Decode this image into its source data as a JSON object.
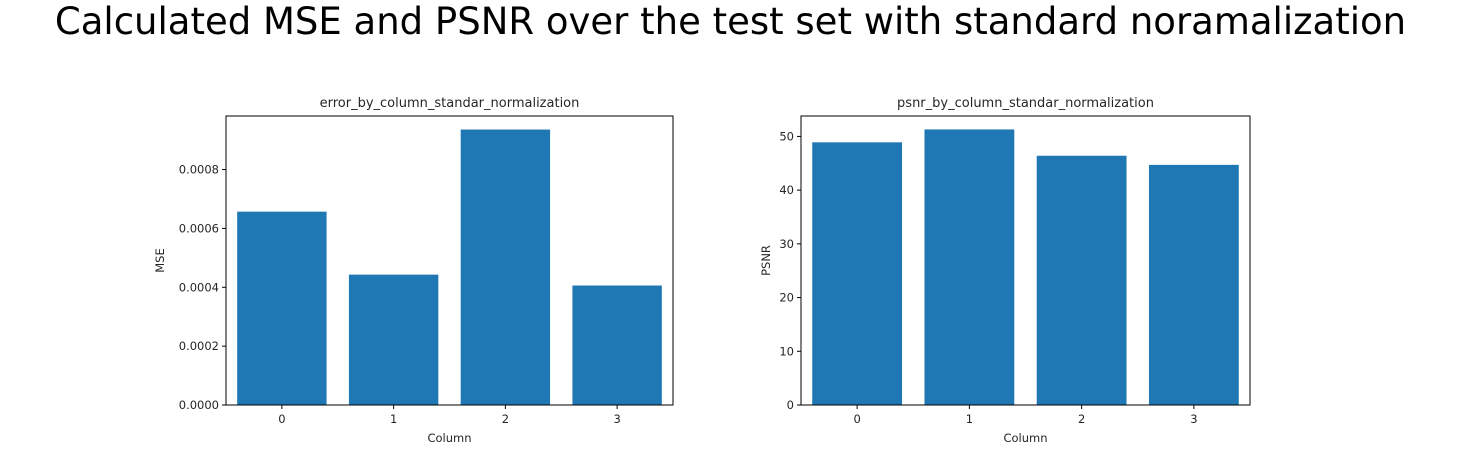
{
  "page": {
    "title": "Calculated MSE and PSNR over the test set with standard noramalization"
  },
  "colors": {
    "bar": "#1f77b4",
    "axis": "#000000",
    "text": "#262626",
    "background": "#ffffff"
  },
  "chart_data": [
    {
      "type": "bar",
      "title": "error_by_column_standar_normalization",
      "xlabel": "Column",
      "ylabel": "MSE",
      "categories": [
        "0",
        "1",
        "2",
        "3"
      ],
      "values": [
        0.000657,
        0.000443,
        0.000936,
        0.000406
      ],
      "ylim": [
        0,
        0.000982
      ],
      "yticks": [
        0.0,
        0.0002,
        0.0004,
        0.0006,
        0.0008
      ],
      "ytick_labels": [
        "0.0000",
        "0.0002",
        "0.0004",
        "0.0006",
        "0.0008"
      ],
      "grid": false,
      "legend": "none"
    },
    {
      "type": "bar",
      "title": "psnr_by_column_standar_normalization",
      "xlabel": "Column",
      "ylabel": "PSNR",
      "categories": [
        "0",
        "1",
        "2",
        "3"
      ],
      "values": [
        48.9,
        51.3,
        46.4,
        44.7
      ],
      "ylim": [
        0,
        53.8
      ],
      "yticks": [
        0,
        10,
        20,
        30,
        40,
        50
      ],
      "ytick_labels": [
        "0",
        "10",
        "20",
        "30",
        "40",
        "50"
      ],
      "grid": false,
      "legend": "none"
    }
  ]
}
